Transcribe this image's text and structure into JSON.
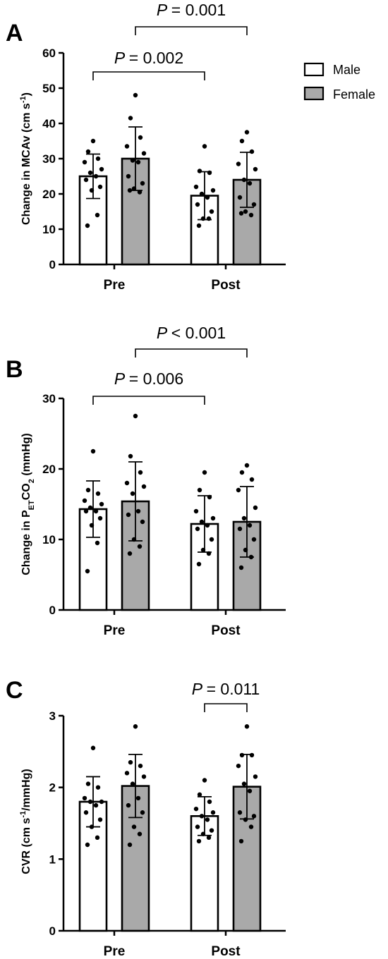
{
  "colors": {
    "male_fill": "#ffffff",
    "female_fill": "#a9a9a9",
    "stroke": "#000000"
  },
  "legend": {
    "placement": "top-right",
    "items": [
      {
        "label": "Male",
        "color": "#ffffff"
      },
      {
        "label": "Female",
        "color": "#a9a9a9"
      }
    ]
  },
  "chart_data": [
    {
      "type": "bar",
      "panel": "A",
      "ylabel_main": "Change in MCAv (cm s",
      "ylabel_sup": "-1",
      "ylabel_end": ")",
      "ylim": [
        0,
        60
      ],
      "yticks": [
        "0",
        "10",
        "20",
        "30",
        "40",
        "50",
        "60"
      ],
      "categories": [
        "Pre",
        "Post"
      ],
      "series": [
        {
          "name": "Male",
          "means": [
            25.0,
            19.5
          ],
          "sd": [
            6.3,
            6.8
          ],
          "points": [
            [
              35,
              32,
              30,
              29,
              27,
              26,
              25,
              24,
              22,
              21,
              14,
              11
            ],
            [
              33.5,
              26.5,
              26,
              22,
              21,
              20,
              19,
              17,
              15,
              13,
              13,
              11
            ]
          ]
        },
        {
          "name": "Female",
          "means": [
            30.0,
            24.0
          ],
          "sd": [
            9.0,
            7.8
          ],
          "points": [
            [
              48,
              41.5,
              36,
              33.5,
              31.5,
              29.5,
              29,
              25,
              23,
              21.5,
              20.5,
              21
            ],
            [
              37.5,
              35,
              32,
              28.5,
              27,
              24,
              23,
              19,
              17,
              15,
              14,
              14.5
            ]
          ]
        }
      ],
      "brackets": [
        {
          "from": "Male-Pre",
          "to": "Male-Post",
          "p_symbol": "P",
          "p_text": "= 0.002"
        },
        {
          "from": "Female-Pre",
          "to": "Female-Post",
          "p_symbol": "P",
          "p_text": "= 0.001"
        }
      ]
    },
    {
      "type": "bar",
      "panel": "B",
      "ylabel_main": "Change in P",
      "ylabel_sub": "ET",
      "ylabel_mid": "CO",
      "ylabel_sub2": "2",
      "ylabel_end": " (mmHg)",
      "ylim": [
        0,
        30
      ],
      "yticks": [
        "0",
        "10",
        "20",
        "30"
      ],
      "categories": [
        "Pre",
        "Post"
      ],
      "series": [
        {
          "name": "Male",
          "means": [
            14.3,
            12.2
          ],
          "sd": [
            4.0,
            4.0
          ],
          "points": [
            [
              22.5,
              17,
              16.5,
              15.5,
              15,
              14.5,
              14,
              14,
              13,
              12,
              9.5,
              5.5
            ],
            [
              19.5,
              17,
              16,
              14,
              13,
              12.5,
              12,
              11.5,
              10,
              8.5,
              8,
              6.5
            ]
          ]
        },
        {
          "name": "Female",
          "means": [
            15.4,
            12.5
          ],
          "sd": [
            5.6,
            5.0
          ],
          "points": [
            [
              27.5,
              21.8,
              19.5,
              18,
              17.5,
              16.5,
              14,
              13.5,
              12.5,
              10,
              9,
              8
            ],
            [
              20.5,
              19.5,
              18.5,
              17,
              14.5,
              13,
              12,
              11.5,
              10,
              8.5,
              7.5,
              6
            ]
          ]
        }
      ],
      "brackets": [
        {
          "from": "Male-Pre",
          "to": "Male-Post",
          "p_symbol": "P",
          "p_text": "= 0.006"
        },
        {
          "from": "Female-Pre",
          "to": "Female-Post",
          "p_symbol": "P",
          "p_text": "< 0.001"
        }
      ]
    },
    {
      "type": "bar",
      "panel": "C",
      "ylabel_main": "CVR (cm s",
      "ylabel_sup": "-1",
      "ylabel_end": "/mmHg)",
      "ylim": [
        0,
        3
      ],
      "yticks": [
        "0",
        "1",
        "2",
        "3"
      ],
      "categories": [
        "Pre",
        "Post"
      ],
      "series": [
        {
          "name": "Male",
          "means": [
            1.8,
            1.6
          ],
          "sd": [
            0.35,
            0.27
          ],
          "points": [
            [
              2.55,
              2.05,
              2.0,
              1.85,
              1.8,
              1.8,
              1.75,
              1.65,
              1.55,
              1.45,
              1.3,
              1.2
            ],
            [
              2.1,
              1.9,
              1.8,
              1.7,
              1.65,
              1.6,
              1.55,
              1.45,
              1.4,
              1.35,
              1.3,
              1.25
            ]
          ]
        },
        {
          "name": "Female",
          "means": [
            2.02,
            2.01
          ],
          "sd": [
            0.44,
            0.45
          ],
          "points": [
            [
              2.85,
              2.35,
              2.3,
              2.2,
              2.15,
              2.05,
              1.85,
              1.75,
              1.65,
              1.45,
              1.35,
              1.2
            ],
            [
              2.85,
              2.45,
              2.45,
              2.3,
              2.15,
              2.05,
              1.95,
              1.65,
              1.6,
              1.55,
              1.45,
              1.25
            ]
          ]
        }
      ],
      "brackets": [
        {
          "from": "Male-Post",
          "to": "Female-Post",
          "p_symbol": "P",
          "p_text": "= 0.011"
        }
      ]
    }
  ]
}
